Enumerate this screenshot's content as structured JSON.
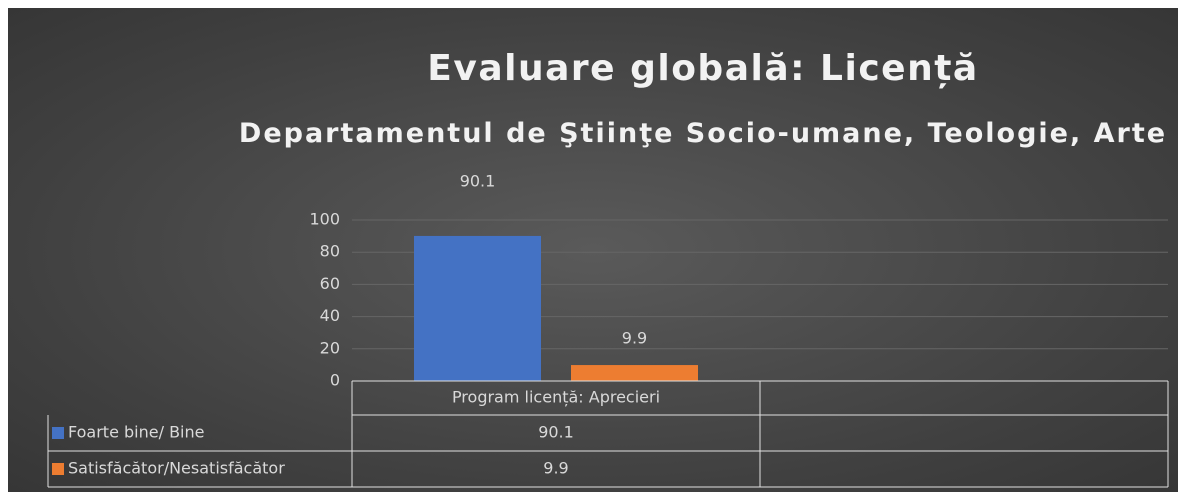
{
  "chart_data": {
    "type": "bar",
    "title": "Evaluare globală: Licență",
    "subtitle": "Departamentul de Ştiinţe Socio-umane, Teologie, Arte",
    "categories": [
      "Program licență: Aprecieri",
      null
    ],
    "series": [
      {
        "name": "Foarte bine/ Bine",
        "color": "#4472c4",
        "values": [
          90.1,
          null
        ]
      },
      {
        "name": "Satisfăcător/Nesatisfăcător",
        "color": "#ed7d31",
        "values": [
          9.9,
          null
        ]
      }
    ],
    "ylim": [
      0,
      100
    ],
    "yticks": [
      0,
      20,
      40,
      60,
      80,
      100
    ],
    "grid": true,
    "data_table": true
  }
}
